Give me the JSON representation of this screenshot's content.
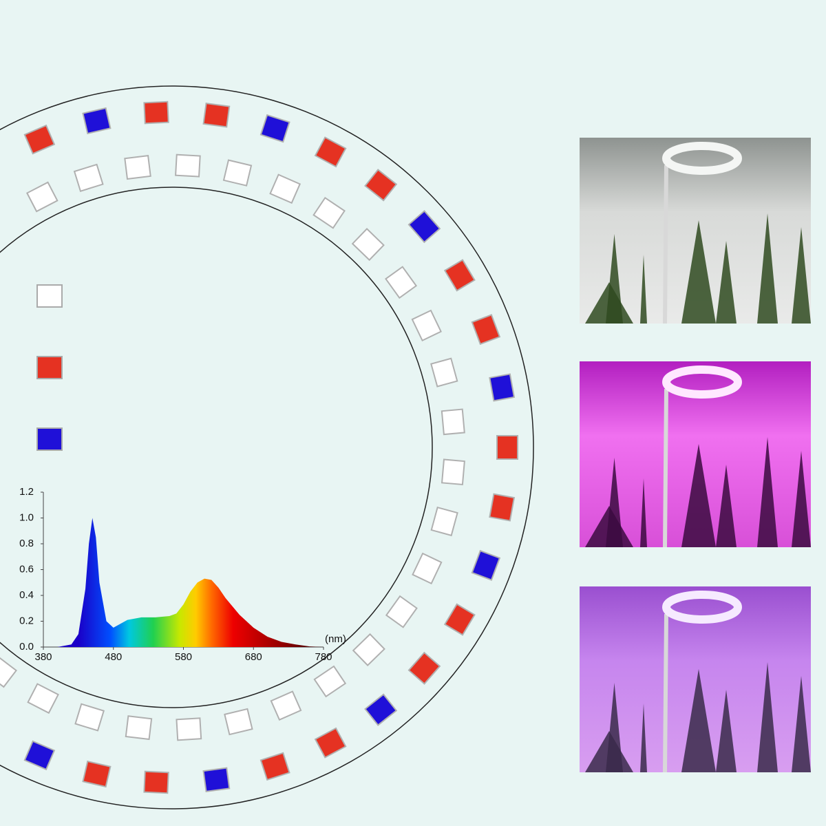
{
  "chart_data": {
    "type": "area",
    "x_label": "(nm)",
    "x": [
      400,
      420,
      430,
      440,
      445,
      450,
      455,
      460,
      470,
      480,
      490,
      500,
      520,
      540,
      560,
      570,
      580,
      590,
      600,
      610,
      620,
      630,
      640,
      660,
      680,
      700,
      720,
      740,
      760,
      780
    ],
    "values": [
      0,
      0.02,
      0.1,
      0.45,
      0.8,
      1.0,
      0.85,
      0.5,
      0.2,
      0.15,
      0.18,
      0.21,
      0.23,
      0.23,
      0.24,
      0.26,
      0.33,
      0.43,
      0.5,
      0.53,
      0.52,
      0.46,
      0.38,
      0.25,
      0.15,
      0.08,
      0.04,
      0.02,
      0.005,
      0
    ],
    "xlim": [
      380,
      780
    ],
    "xticks": [
      380,
      480,
      580,
      680,
      780
    ],
    "ylim": [
      0,
      1.2
    ],
    "yticks": [
      {
        "value": 0,
        "label": "0.0"
      },
      0.2,
      0.4,
      0.6,
      0.8,
      {
        "value": 1,
        "label": "1.0"
      },
      1.2
    ]
  }
}
